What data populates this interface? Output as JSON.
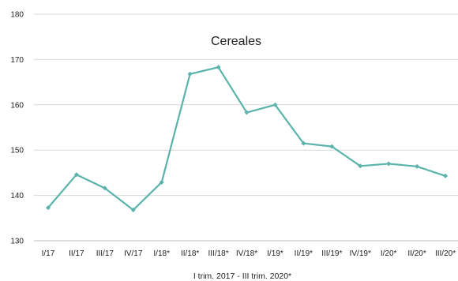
{
  "chart_data": {
    "type": "line",
    "title": "Cereales",
    "xlabel": "I trim. 2017 - III trim. 2020*",
    "ylabel": "",
    "ylim": [
      130,
      180
    ],
    "yticks": [
      130,
      140,
      150,
      160,
      170,
      180
    ],
    "grid": "horizontal",
    "legend": "none",
    "categories": [
      "I/17",
      "II/17",
      "III/17",
      "IV/17",
      "I/18*",
      "II/18*",
      "III/18*",
      "IV/18*",
      "I/19*",
      "II/19*",
      "III/19*",
      "IV/19*",
      "I/20*",
      "II/20*",
      "III/20*"
    ],
    "series": [
      {
        "color": "#5ab4ac",
        "values": [
          137.3,
          144.6,
          141.6,
          136.8,
          142.9,
          166.8,
          168.3,
          158.3,
          160.0,
          151.5,
          150.8,
          146.5,
          147.0,
          146.4,
          144.3
        ]
      }
    ]
  }
}
